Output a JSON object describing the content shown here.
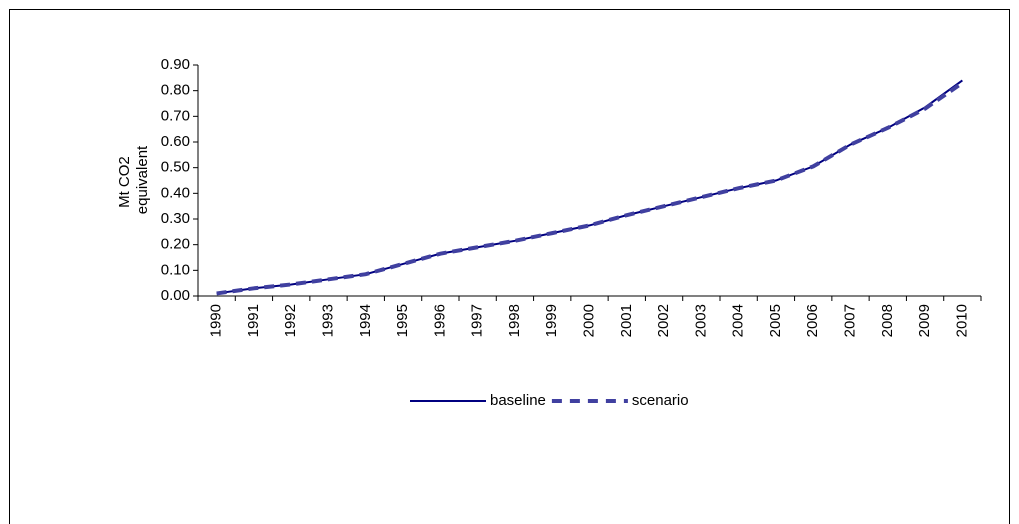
{
  "chart_data": {
    "type": "line",
    "ylabel": [
      "Mt CO2",
      "equivalent"
    ],
    "categories": [
      "1990",
      "1991",
      "1992",
      "1993",
      "1994",
      "1995",
      "1996",
      "1997",
      "1998",
      "1999",
      "2000",
      "2001",
      "2002",
      "2003",
      "2004",
      "2005",
      "2006",
      "2007",
      "2008",
      "2009",
      "2010"
    ],
    "series": [
      {
        "name": "baseline",
        "color": "#000080",
        "dashed": false,
        "values": [
          0.01,
          0.03,
          0.045,
          0.065,
          0.085,
          0.125,
          0.165,
          0.19,
          0.215,
          0.245,
          0.275,
          0.315,
          0.35,
          0.385,
          0.42,
          0.45,
          0.505,
          0.59,
          0.655,
          0.735,
          0.84
        ]
      },
      {
        "name": "scenario",
        "color": "#4040a0",
        "dashed": true,
        "values": [
          0.01,
          0.03,
          0.045,
          0.065,
          0.085,
          0.125,
          0.165,
          0.19,
          0.215,
          0.245,
          0.275,
          0.315,
          0.35,
          0.385,
          0.42,
          0.45,
          0.505,
          0.59,
          0.655,
          0.73,
          0.83
        ]
      }
    ],
    "ylim": [
      0,
      0.9
    ],
    "yticks": [
      {
        "value": 0,
        "label": "0.00"
      },
      {
        "value": 0.1,
        "label": "0.10"
      },
      {
        "value": 0.2,
        "label": "0.20"
      },
      {
        "value": 0.3,
        "label": "0.30"
      },
      {
        "value": 0.4,
        "label": "0.40"
      },
      {
        "value": 0.5,
        "label": "0.50"
      },
      {
        "value": 0.6,
        "label": "0.60"
      },
      {
        "value": 0.7,
        "label": "0.70"
      },
      {
        "value": 0.8,
        "label": "0.80"
      },
      {
        "value": 0.9,
        "label": "0.90"
      }
    ],
    "grid": false,
    "legend": "bottom"
  }
}
